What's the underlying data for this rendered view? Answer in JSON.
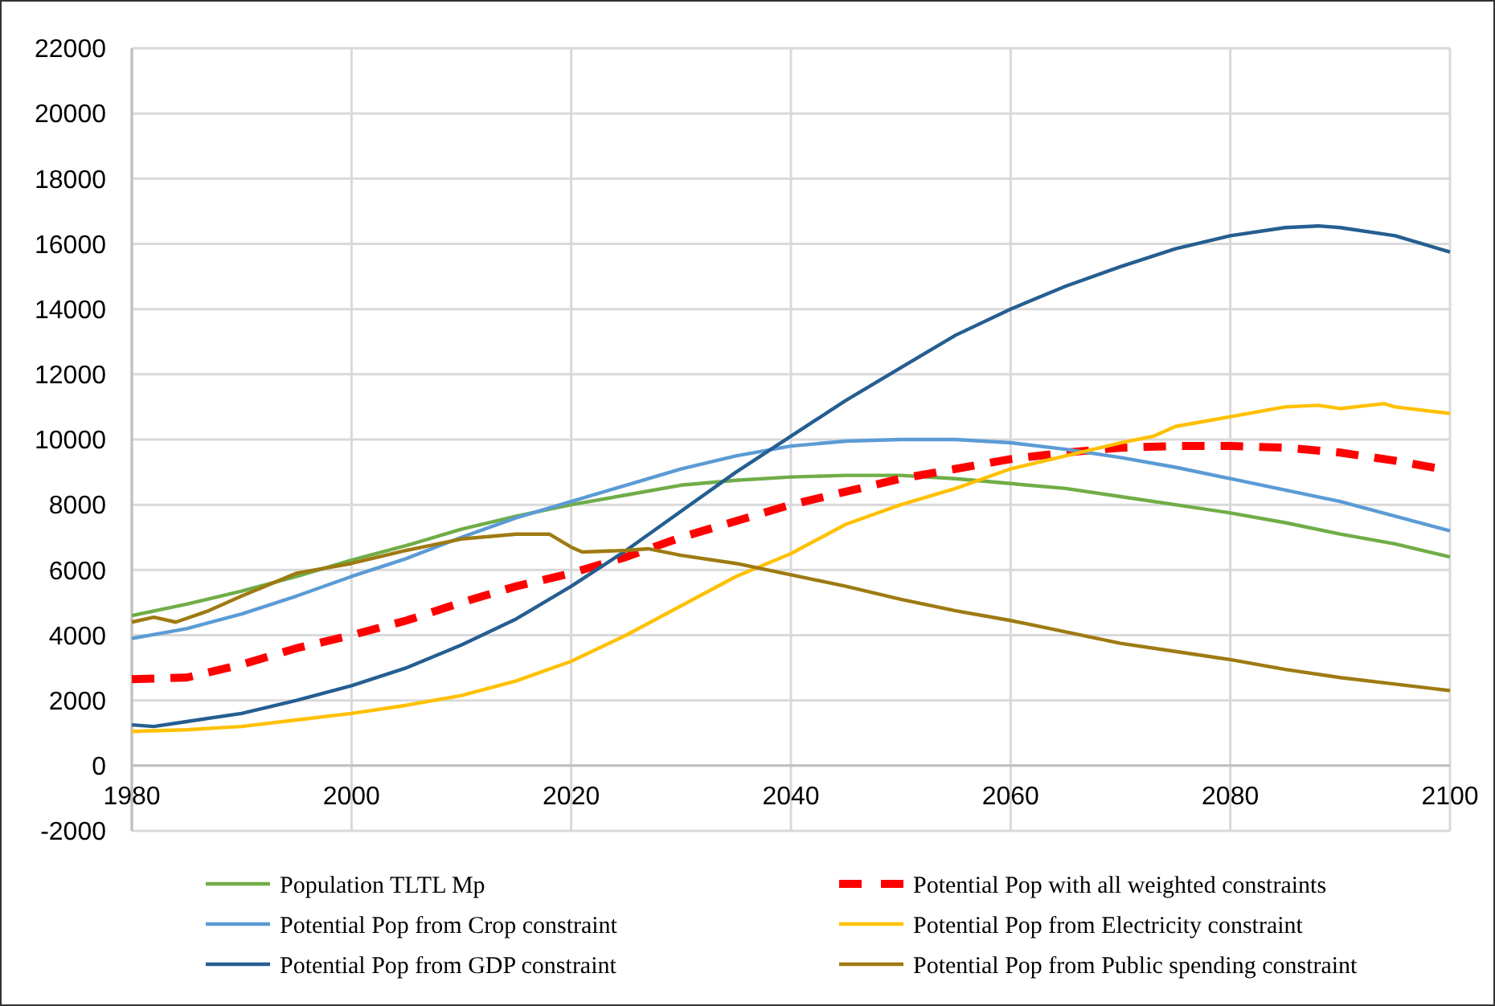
{
  "chart_data": {
    "type": "line",
    "xlim": [
      1980,
      2100
    ],
    "xticks": [
      1980,
      2000,
      2020,
      2040,
      2060,
      2080,
      2100
    ],
    "ylim": [
      -2000,
      22000
    ],
    "yticks": [
      -2000,
      0,
      2000,
      4000,
      6000,
      8000,
      10000,
      12000,
      14000,
      16000,
      18000,
      20000,
      22000
    ],
    "grid": true,
    "legend": "bottom",
    "series": [
      {
        "name": "Population TLTL Mp",
        "color": "#70ad47",
        "x": [
          1980,
          1985,
          1990,
          1995,
          2000,
          2005,
          2010,
          2015,
          2020,
          2025,
          2030,
          2035,
          2040,
          2045,
          2050,
          2055,
          2060,
          2065,
          2070,
          2075,
          2080,
          2085,
          2090,
          2095,
          2100
        ],
        "values": [
          4600,
          4950,
          5350,
          5800,
          6300,
          6750,
          7250,
          7650,
          8000,
          8300,
          8600,
          8750,
          8850,
          8900,
          8900,
          8800,
          8650,
          8500,
          8250,
          8000,
          7750,
          7450,
          7100,
          6800,
          6400
        ]
      },
      {
        "name": "Potential Pop with all weighted constraints",
        "color": "#ff0000",
        "line_style": "dashed",
        "x": [
          1980,
          1985,
          1990,
          1995,
          2000,
          2005,
          2010,
          2015,
          2020,
          2025,
          2030,
          2035,
          2040,
          2045,
          2050,
          2055,
          2060,
          2065,
          2070,
          2075,
          2080,
          2085,
          2090,
          2095,
          2100
        ],
        "values": [
          2650,
          2700,
          3100,
          3600,
          4000,
          4450,
          5000,
          5500,
          5900,
          6400,
          7000,
          7500,
          8000,
          8400,
          8800,
          9100,
          9400,
          9600,
          9750,
          9800,
          9800,
          9750,
          9600,
          9350,
          9050
        ]
      },
      {
        "name": "Potential Pop from Crop constraint",
        "color": "#5b9bd5",
        "x": [
          1980,
          1985,
          1990,
          1995,
          2000,
          2005,
          2010,
          2015,
          2020,
          2025,
          2030,
          2035,
          2040,
          2045,
          2050,
          2055,
          2060,
          2065,
          2070,
          2075,
          2080,
          2085,
          2090,
          2095,
          2100
        ],
        "values": [
          3900,
          4200,
          4650,
          5200,
          5800,
          6350,
          7000,
          7600,
          8100,
          8600,
          9100,
          9500,
          9800,
          9950,
          10000,
          10000,
          9900,
          9700,
          9450,
          9150,
          8800,
          8450,
          8100,
          7650,
          7200
        ]
      },
      {
        "name": "Potential Pop from Electricity constraint",
        "color": "#ffc000",
        "x": [
          1980,
          1985,
          1990,
          1995,
          2000,
          2005,
          2010,
          2015,
          2020,
          2025,
          2030,
          2035,
          2040,
          2045,
          2050,
          2055,
          2060,
          2065,
          2070,
          2073,
          2075,
          2080,
          2085,
          2088,
          2090,
          2094,
          2095,
          2100
        ],
        "values": [
          1050,
          1100,
          1200,
          1400,
          1600,
          1850,
          2150,
          2600,
          3200,
          4000,
          4900,
          5800,
          6500,
          7400,
          8000,
          8500,
          9100,
          9500,
          9900,
          10100,
          10400,
          10700,
          11000,
          11050,
          10950,
          11100,
          11000,
          10800
        ]
      },
      {
        "name": "Potential Pop from GDP constraint",
        "color": "#255e91",
        "x": [
          1980,
          1982,
          1985,
          1990,
          1995,
          2000,
          2005,
          2010,
          2015,
          2020,
          2025,
          2030,
          2035,
          2040,
          2045,
          2050,
          2055,
          2060,
          2065,
          2070,
          2075,
          2080,
          2085,
          2088,
          2090,
          2095,
          2100
        ],
        "values": [
          1250,
          1200,
          1350,
          1600,
          2000,
          2450,
          3000,
          3700,
          4500,
          5500,
          6600,
          7800,
          9000,
          10100,
          11200,
          12200,
          13200,
          14000,
          14700,
          15300,
          15850,
          16250,
          16500,
          16550,
          16500,
          16250,
          15750
        ]
      },
      {
        "name": "Potential Pop from Public spending constraint",
        "color": "#9e7a12",
        "x": [
          1980,
          1982,
          1984,
          1987,
          1990,
          1995,
          2000,
          2005,
          2010,
          2015,
          2018,
          2020,
          2021,
          2025,
          2027,
          2030,
          2035,
          2040,
          2045,
          2050,
          2055,
          2060,
          2065,
          2070,
          2075,
          2080,
          2085,
          2090,
          2095,
          2100
        ],
        "values": [
          4400,
          4550,
          4400,
          4750,
          5200,
          5900,
          6200,
          6600,
          6950,
          7100,
          7100,
          6700,
          6550,
          6600,
          6650,
          6450,
          6200,
          5850,
          5500,
          5100,
          4750,
          4450,
          4100,
          3750,
          3500,
          3250,
          2950,
          2700,
          2500,
          2300
        ]
      }
    ]
  }
}
